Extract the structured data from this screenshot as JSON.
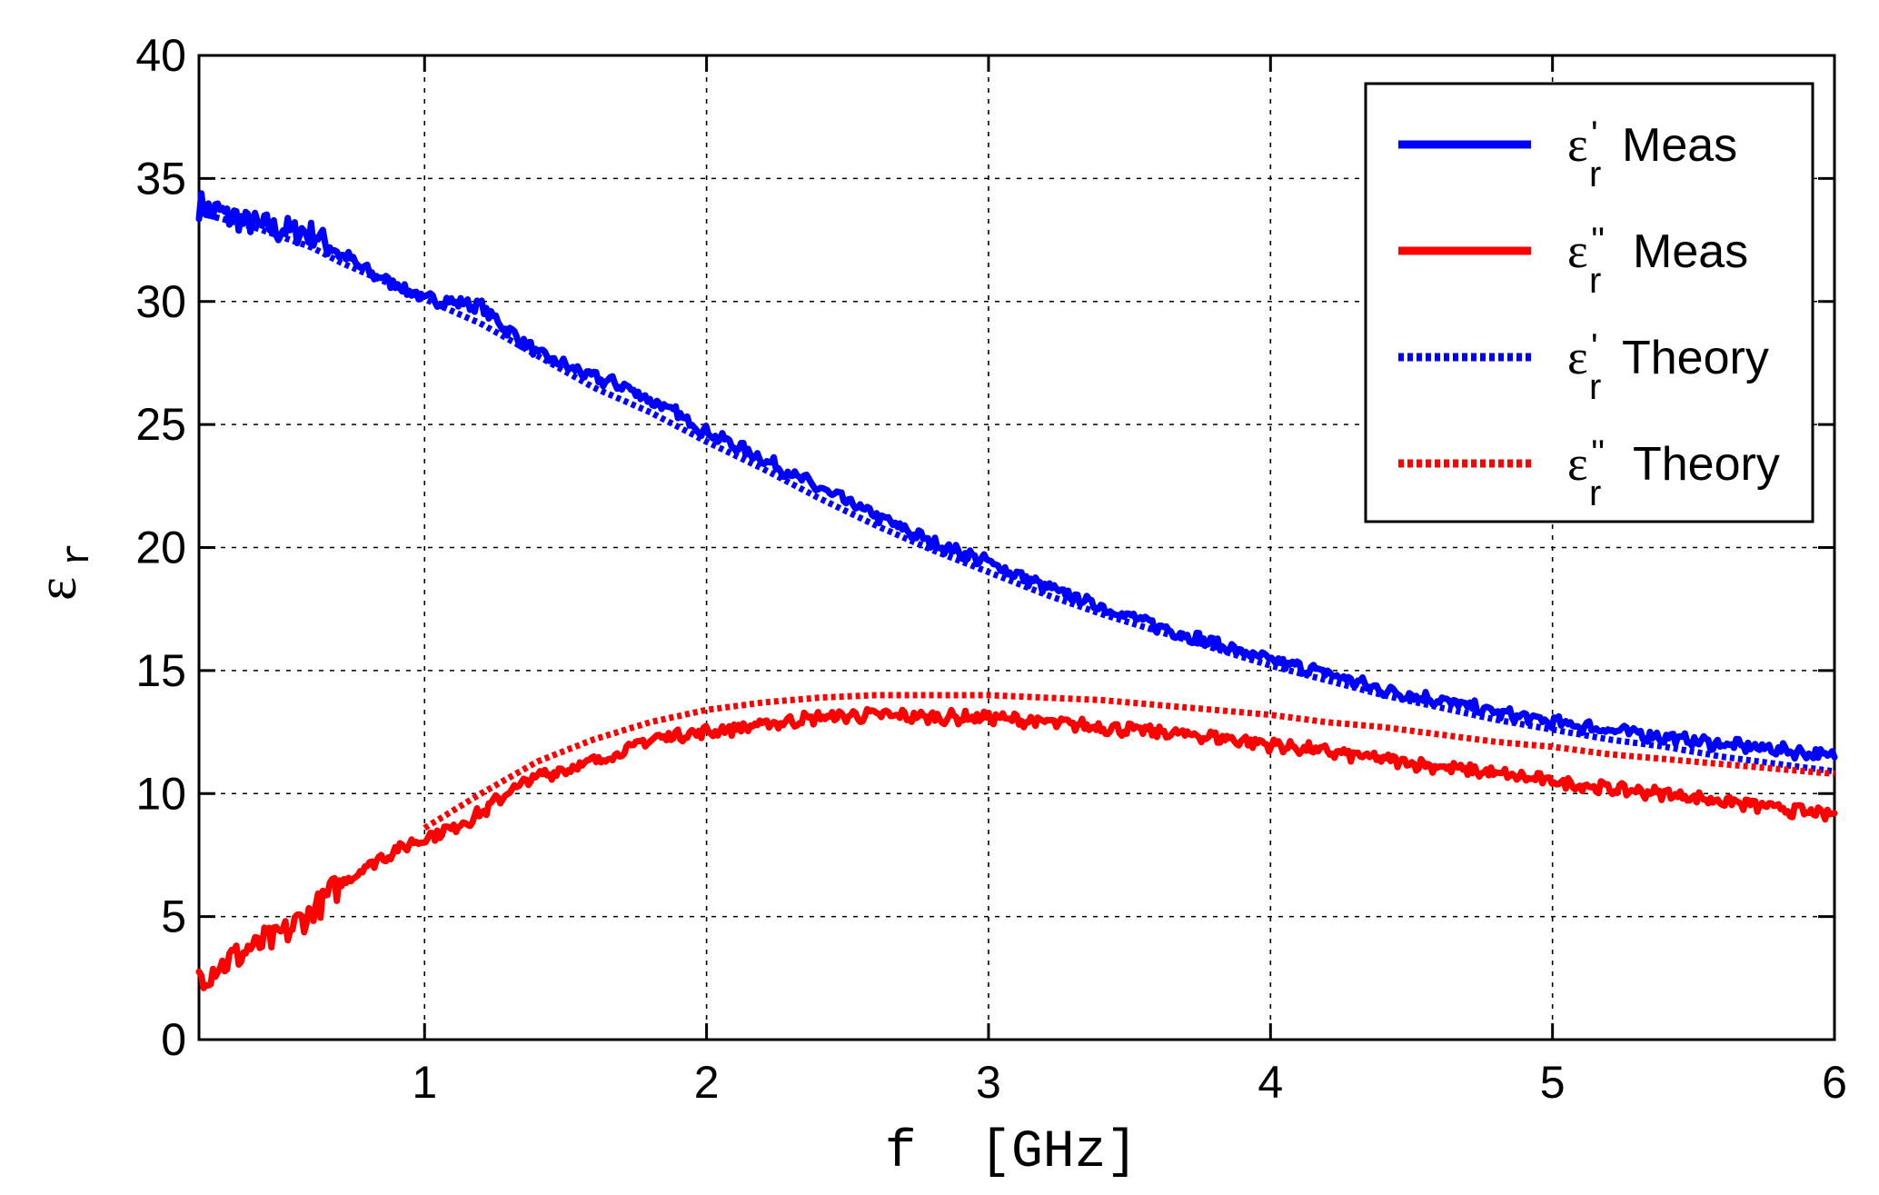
{
  "chart_data": {
    "type": "line",
    "xlabel": "f  [GHz]",
    "ylabel": "ε",
    "ylabel_sub": "r",
    "xlim": [
      0.2,
      6
    ],
    "ylim": [
      0,
      40
    ],
    "xticks": [
      1,
      2,
      3,
      4,
      5,
      6
    ],
    "yticks": [
      0,
      5,
      10,
      15,
      20,
      25,
      30,
      35,
      40
    ],
    "grid": true,
    "legend_position": "top-right",
    "series": [
      {
        "name": "ε'r Meas",
        "legend_symbol": "ε",
        "legend_prime": "'",
        "legend_sub": "r",
        "legend_text": "Meas",
        "color": "#0000ff",
        "style": "solid",
        "noisy": true,
        "x": [
          0.2,
          0.3,
          0.4,
          0.5,
          0.6,
          0.7,
          0.8,
          0.9,
          1.0,
          1.1,
          1.2,
          1.3,
          1.4,
          1.5,
          1.6,
          1.7,
          1.8,
          1.9,
          2.0,
          2.2,
          2.4,
          2.6,
          2.8,
          3.0,
          3.2,
          3.4,
          3.6,
          3.8,
          4.0,
          4.2,
          4.4,
          4.6,
          4.8,
          5.0,
          5.2,
          5.4,
          5.6,
          5.8,
          6.0
        ],
        "y": [
          33.9,
          33.5,
          33.1,
          32.9,
          32.8,
          32.0,
          31.2,
          30.7,
          30.1,
          30.0,
          29.8,
          28.8,
          27.9,
          27.4,
          26.9,
          26.6,
          26.0,
          25.4,
          24.7,
          23.6,
          22.4,
          21.3,
          20.2,
          19.4,
          18.4,
          17.6,
          16.8,
          16.1,
          15.4,
          14.9,
          14.2,
          13.8,
          13.3,
          12.9,
          12.6,
          12.3,
          12.0,
          11.8,
          11.5
        ]
      },
      {
        "name": "ε''r Meas",
        "legend_symbol": "ε",
        "legend_prime": "''",
        "legend_sub": "r",
        "legend_text": "Meas",
        "color": "#ff0000",
        "style": "solid",
        "noisy": true,
        "x": [
          0.2,
          0.3,
          0.4,
          0.5,
          0.6,
          0.7,
          0.8,
          0.9,
          1.0,
          1.1,
          1.2,
          1.3,
          1.4,
          1.5,
          1.6,
          1.7,
          1.8,
          1.9,
          2.0,
          2.2,
          2.4,
          2.6,
          2.8,
          3.0,
          3.2,
          3.4,
          3.6,
          3.8,
          4.0,
          4.2,
          4.4,
          4.6,
          4.8,
          5.0,
          5.2,
          5.4,
          5.6,
          5.8,
          6.0
        ],
        "y": [
          2.5,
          3.2,
          3.8,
          4.3,
          5.2,
          6.3,
          7.1,
          7.7,
          8.2,
          8.6,
          9.2,
          10.1,
          10.7,
          11.0,
          11.3,
          11.7,
          12.2,
          12.4,
          12.5,
          12.8,
          13.1,
          13.2,
          13.1,
          13.1,
          12.9,
          12.7,
          12.5,
          12.3,
          12.0,
          11.7,
          11.4,
          11.1,
          10.8,
          10.5,
          10.2,
          10.0,
          9.7,
          9.4,
          9.1
        ]
      },
      {
        "name": "ε'r Theory",
        "legend_symbol": "ε",
        "legend_prime": "'",
        "legend_sub": "r",
        "legend_text": "Theory",
        "color": "#0000ff",
        "style": "dotted",
        "noisy": false,
        "x": [
          0.2,
          0.3,
          0.4,
          0.5,
          0.6,
          0.7,
          0.8,
          0.9,
          1.0,
          1.2,
          1.4,
          1.6,
          1.8,
          2.0,
          2.2,
          2.4,
          2.6,
          2.8,
          3.0,
          3.2,
          3.4,
          3.6,
          3.8,
          4.0,
          4.2,
          4.4,
          4.6,
          4.8,
          5.0,
          5.2,
          5.4,
          5.6,
          5.8,
          6.0
        ],
        "y": [
          33.6,
          33.3,
          33.0,
          32.6,
          32.2,
          31.6,
          31.1,
          30.6,
          30.1,
          29.1,
          27.8,
          26.5,
          25.5,
          24.3,
          23.2,
          22.0,
          20.9,
          19.9,
          19.0,
          18.1,
          17.3,
          16.6,
          15.9,
          15.2,
          14.6,
          14.0,
          13.5,
          13.0,
          12.6,
          12.2,
          11.9,
          11.5,
          11.2,
          10.9
        ]
      },
      {
        "name": "ε''r Theory",
        "legend_symbol": "ε",
        "legend_prime": "''",
        "legend_sub": "r",
        "legend_text": "Theory",
        "color": "#ff0000",
        "style": "dotted",
        "noisy": false,
        "x": [
          1.0,
          1.2,
          1.4,
          1.6,
          1.8,
          2.0,
          2.2,
          2.4,
          2.6,
          2.8,
          3.0,
          3.2,
          3.4,
          3.6,
          3.8,
          4.0,
          4.2,
          4.4,
          4.6,
          4.8,
          5.0,
          5.2,
          5.4,
          5.6,
          5.8,
          6.0
        ],
        "y": [
          8.6,
          10.0,
          11.3,
          12.2,
          12.9,
          13.4,
          13.7,
          13.9,
          14.0,
          14.0,
          14.0,
          13.9,
          13.8,
          13.6,
          13.4,
          13.2,
          12.9,
          12.7,
          12.4,
          12.1,
          11.9,
          11.6,
          11.4,
          11.2,
          11.0,
          10.8
        ]
      }
    ]
  }
}
